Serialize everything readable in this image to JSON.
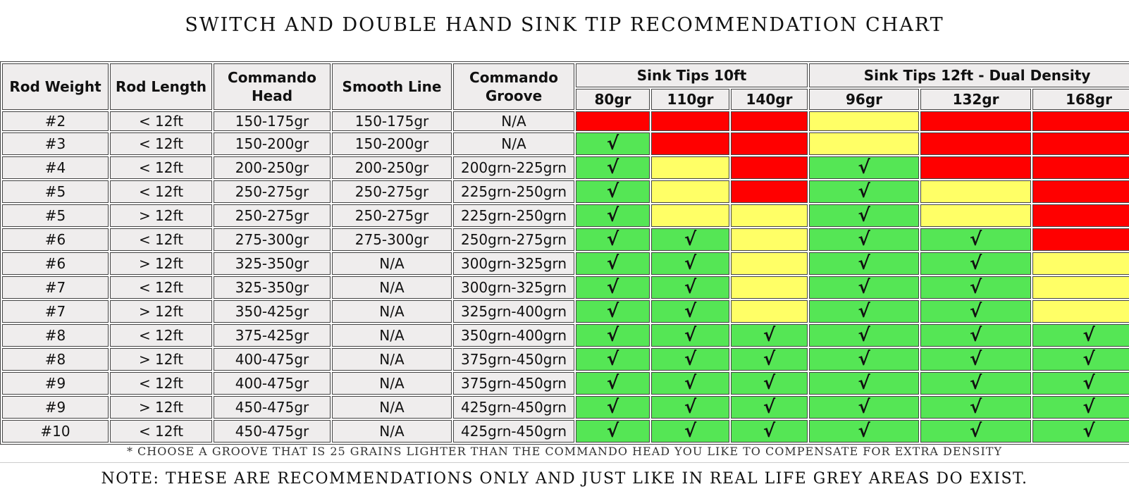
{
  "title": "SWITCH AND DOUBLE HAND SINK TIP RECOMMENDATION CHART",
  "table": {
    "columns": [
      "Rod Weight",
      "Rod Length",
      "Commando Head",
      "Smooth Line",
      "Commando Groove"
    ],
    "groups": [
      {
        "label": "Sink Tips 10ft",
        "sub": [
          "80gr",
          "110gr",
          "140gr"
        ]
      },
      {
        "label": "Sink Tips 12ft - Dual Density",
        "sub": [
          "96gr",
          "132gr",
          "168gr"
        ]
      }
    ],
    "rows": [
      {
        "cells": [
          "#2",
          "< 12ft",
          "150-175gr",
          "150-175gr",
          "N/A"
        ],
        "tips": [
          {
            "color": "#ff0000"
          },
          {
            "color": "#ff0000"
          },
          {
            "color": "#ff0000"
          },
          {
            "color": "#ffff66"
          },
          {
            "color": "#ff0000"
          },
          {
            "color": "#ff0000"
          }
        ]
      },
      {
        "cells": [
          "#3",
          "< 12ft",
          "150-200gr",
          "150-200gr",
          "N/A"
        ],
        "tips": [
          {
            "color": "#55e655",
            "mark": "√"
          },
          {
            "color": "#ff0000"
          },
          {
            "color": "#ff0000"
          },
          {
            "color": "#ffff66"
          },
          {
            "color": "#ff0000"
          },
          {
            "color": "#ff0000"
          }
        ]
      },
      {
        "cells": [
          "#4",
          "< 12ft",
          "200-250gr",
          "200-250gr",
          "200grn-225grn"
        ],
        "tips": [
          {
            "color": "#55e655",
            "mark": "√"
          },
          {
            "color": "#ffff66"
          },
          {
            "color": "#ff0000"
          },
          {
            "color": "#55e655",
            "mark": "√"
          },
          {
            "color": "#ff0000"
          },
          {
            "color": "#ff0000"
          }
        ]
      },
      {
        "cells": [
          "#5",
          "< 12ft",
          "250-275gr",
          "250-275gr",
          "225grn-250grn"
        ],
        "tips": [
          {
            "color": "#55e655",
            "mark": "√"
          },
          {
            "color": "#ffff66"
          },
          {
            "color": "#ff0000"
          },
          {
            "color": "#55e655",
            "mark": "√"
          },
          {
            "color": "#ffff66"
          },
          {
            "color": "#ff0000"
          }
        ]
      },
      {
        "cells": [
          "#5",
          "> 12ft",
          "250-275gr",
          "250-275gr",
          "225grn-250grn"
        ],
        "tips": [
          {
            "color": "#55e655",
            "mark": "√"
          },
          {
            "color": "#ffff66"
          },
          {
            "color": "#ffff66"
          },
          {
            "color": "#55e655",
            "mark": "√"
          },
          {
            "color": "#ffff66"
          },
          {
            "color": "#ff0000"
          }
        ]
      },
      {
        "cells": [
          "#6",
          "< 12ft",
          "275-300gr",
          "275-300gr",
          "250grn-275grn"
        ],
        "tips": [
          {
            "color": "#55e655",
            "mark": "√"
          },
          {
            "color": "#55e655",
            "mark": "√"
          },
          {
            "color": "#ffff66"
          },
          {
            "color": "#55e655",
            "mark": "√"
          },
          {
            "color": "#55e655",
            "mark": "√"
          },
          {
            "color": "#ff0000"
          }
        ]
      },
      {
        "cells": [
          "#6",
          "> 12ft",
          "325-350gr",
          "N/A",
          "300grn-325grn"
        ],
        "tips": [
          {
            "color": "#55e655",
            "mark": "√"
          },
          {
            "color": "#55e655",
            "mark": "√"
          },
          {
            "color": "#ffff66"
          },
          {
            "color": "#55e655",
            "mark": "√"
          },
          {
            "color": "#55e655",
            "mark": "√"
          },
          {
            "color": "#ffff66"
          }
        ]
      },
      {
        "cells": [
          "#7",
          "< 12ft",
          "325-350gr",
          "N/A",
          "300grn-325grn"
        ],
        "tips": [
          {
            "color": "#55e655",
            "mark": "√"
          },
          {
            "color": "#55e655",
            "mark": "√"
          },
          {
            "color": "#ffff66"
          },
          {
            "color": "#55e655",
            "mark": "√"
          },
          {
            "color": "#55e655",
            "mark": "√"
          },
          {
            "color": "#ffff66"
          }
        ]
      },
      {
        "cells": [
          "#7",
          "> 12ft",
          "350-425gr",
          "N/A",
          "325grn-400grn"
        ],
        "tips": [
          {
            "color": "#55e655",
            "mark": "√"
          },
          {
            "color": "#55e655",
            "mark": "√"
          },
          {
            "color": "#ffff66"
          },
          {
            "color": "#55e655",
            "mark": "√"
          },
          {
            "color": "#55e655",
            "mark": "√"
          },
          {
            "color": "#ffff66"
          }
        ]
      },
      {
        "cells": [
          "#8",
          "< 12ft",
          "375-425gr",
          "N/A",
          "350grn-400grn"
        ],
        "tips": [
          {
            "color": "#55e655",
            "mark": "√"
          },
          {
            "color": "#55e655",
            "mark": "√"
          },
          {
            "color": "#55e655",
            "mark": "√"
          },
          {
            "color": "#55e655",
            "mark": "√"
          },
          {
            "color": "#55e655",
            "mark": "√"
          },
          {
            "color": "#55e655",
            "mark": "√"
          }
        ]
      },
      {
        "cells": [
          "#8",
          "> 12ft",
          "400-475gr",
          "N/A",
          "375grn-450grn"
        ],
        "tips": [
          {
            "color": "#55e655",
            "mark": "√"
          },
          {
            "color": "#55e655",
            "mark": "√"
          },
          {
            "color": "#55e655",
            "mark": "√"
          },
          {
            "color": "#55e655",
            "mark": "√"
          },
          {
            "color": "#55e655",
            "mark": "√"
          },
          {
            "color": "#55e655",
            "mark": "√"
          }
        ]
      },
      {
        "cells": [
          "#9",
          "< 12ft",
          "400-475gr",
          "N/A",
          "375grn-450grn"
        ],
        "tips": [
          {
            "color": "#55e655",
            "mark": "√"
          },
          {
            "color": "#55e655",
            "mark": "√"
          },
          {
            "color": "#55e655",
            "mark": "√"
          },
          {
            "color": "#55e655",
            "mark": "√"
          },
          {
            "color": "#55e655",
            "mark": "√"
          },
          {
            "color": "#55e655",
            "mark": "√"
          }
        ]
      },
      {
        "cells": [
          "#9",
          "> 12ft",
          "450-475gr",
          "N/A",
          "425grn-450grn"
        ],
        "tips": [
          {
            "color": "#55e655",
            "mark": "√"
          },
          {
            "color": "#55e655",
            "mark": "√"
          },
          {
            "color": "#55e655",
            "mark": "√"
          },
          {
            "color": "#55e655",
            "mark": "√"
          },
          {
            "color": "#55e655",
            "mark": "√"
          },
          {
            "color": "#55e655",
            "mark": "√"
          }
        ]
      },
      {
        "cells": [
          "#10",
          "< 12ft",
          "450-475gr",
          "N/A",
          "425grn-450grn"
        ],
        "tips": [
          {
            "color": "#55e655",
            "mark": "√"
          },
          {
            "color": "#55e655",
            "mark": "√"
          },
          {
            "color": "#55e655",
            "mark": "√"
          },
          {
            "color": "#55e655",
            "mark": "√"
          },
          {
            "color": "#55e655",
            "mark": "√"
          },
          {
            "color": "#55e655",
            "mark": "√"
          }
        ]
      }
    ]
  },
  "footnote": "* CHOOSE A GROOVE THAT IS 25 GRAINS LIGHTER THAN THE COMMANDO HEAD YOU LIKE TO COMPENSATE FOR EXTRA DENSITY",
  "note": "NOTE:  THESE ARE RECOMMENDATIONS ONLY AND JUST LIKE IN REAL LIFE GREY AREAS DO EXIST."
}
